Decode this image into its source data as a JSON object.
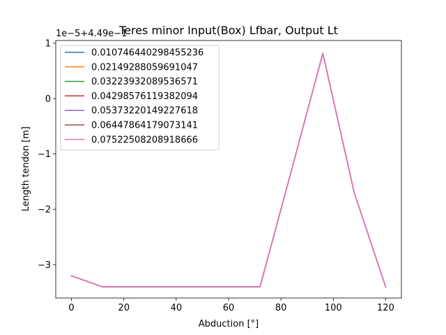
{
  "chart_data": {
    "type": "line",
    "title": "Teres minor Input(Box) Lfbar, Output Lt",
    "xlabel": "Abduction [°]",
    "ylabel": "Length tendon [m]",
    "offset_text": "1e−5+4.49e−1",
    "xlim": [
      -6,
      126
    ],
    "ylim": [
      -3.6,
      1.05
    ],
    "x_ticks": [
      0,
      20,
      40,
      60,
      80,
      100,
      120
    ],
    "x_tick_labels": [
      "0",
      "20",
      "40",
      "60",
      "80",
      "100",
      "120"
    ],
    "y_ticks": [
      -3,
      -2,
      -1,
      0,
      1
    ],
    "y_tick_labels": [
      "−3",
      "−2",
      "−1",
      "0",
      "1"
    ],
    "grid": false,
    "legend_position": "top-left",
    "x": [
      0,
      12,
      24,
      36,
      48,
      60,
      72,
      84,
      96,
      108,
      120
    ],
    "series": [
      {
        "name": "0.010746440298455236",
        "color": "#1f77b4",
        "values": [
          -3.2,
          -3.4,
          -3.4,
          -3.4,
          -3.4,
          -3.4,
          -3.4,
          -1.3,
          0.82,
          -1.7,
          -3.4
        ]
      },
      {
        "name": "0.02149288059691047",
        "color": "#ff7f0e",
        "values": [
          -3.2,
          -3.4,
          -3.4,
          -3.4,
          -3.4,
          -3.4,
          -3.4,
          -1.3,
          0.82,
          -1.7,
          -3.4
        ]
      },
      {
        "name": "0.03223932089536571",
        "color": "#2ca02c",
        "values": [
          -3.2,
          -3.4,
          -3.4,
          -3.4,
          -3.4,
          -3.4,
          -3.4,
          -1.3,
          0.82,
          -1.7,
          -3.4
        ]
      },
      {
        "name": "0.04298576119382094",
        "color": "#d62728",
        "values": [
          -3.2,
          -3.4,
          -3.4,
          -3.4,
          -3.4,
          -3.4,
          -3.4,
          -1.3,
          0.82,
          -1.7,
          -3.4
        ]
      },
      {
        "name": "0.05373220149227618",
        "color": "#9467bd",
        "values": [
          -3.2,
          -3.4,
          -3.4,
          -3.4,
          -3.4,
          -3.4,
          -3.4,
          -1.3,
          0.82,
          -1.7,
          -3.4
        ]
      },
      {
        "name": "0.06447864179073141",
        "color": "#8c564b",
        "values": [
          -3.2,
          -3.4,
          -3.4,
          -3.4,
          -3.4,
          -3.4,
          -3.4,
          -1.3,
          0.82,
          -1.7,
          -3.4
        ]
      },
      {
        "name": "0.07522508208918666",
        "color": "#e377c2",
        "values": [
          -3.2,
          -3.4,
          -3.4,
          -3.4,
          -3.4,
          -3.4,
          -3.4,
          -1.3,
          0.82,
          -1.7,
          -3.4
        ]
      }
    ]
  }
}
